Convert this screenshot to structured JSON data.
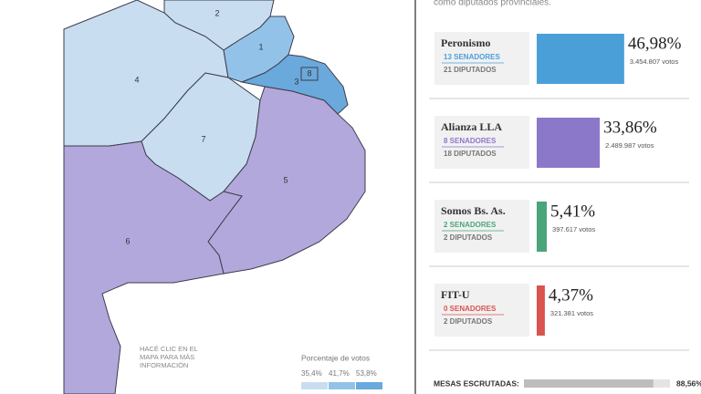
{
  "header": {
    "text": "como diputados provinciales."
  },
  "map": {
    "sections": [
      {
        "label": "2",
        "color": "#c9ddf1"
      },
      {
        "label": "4",
        "color": "#c9ddf1"
      },
      {
        "label": "7",
        "color": "#c9ddf1"
      },
      {
        "label": "1",
        "color": "#93c2e8"
      },
      {
        "label": "3",
        "color": "#6aa9db"
      },
      {
        "label": "5",
        "color": "#b3a8db"
      },
      {
        "label": "6",
        "color": "#b3a8db"
      },
      {
        "label": "8",
        "color": "#6aa9db"
      }
    ],
    "note": [
      "HACÉ CLIC EN EL",
      "MAPA PARA MÁS",
      "INFORMACIÓN"
    ],
    "legend": {
      "title": "Porcentaje de votos",
      "ticks": [
        {
          "value": 35.4,
          "label": "35,4%"
        },
        {
          "value": 41.7,
          "label": "41,7%"
        },
        {
          "value": 53.8,
          "label": "53,8%"
        }
      ],
      "colors": [
        "#c9ddf1",
        "#93c2e8",
        "#6aa9db"
      ]
    }
  },
  "results": [
    {
      "name": "Peronismo",
      "senators": "13 SENADORES",
      "deputies": "21 DIPUTADOS",
      "percent": 46.98,
      "percent_label": "46,98%",
      "votes": "3.454.807 votos",
      "color": "#4b9fd9"
    },
    {
      "name": "Alianza LLA",
      "senators": "8 SENADORES",
      "deputies": "18 DIPUTADOS",
      "percent": 33.86,
      "percent_label": "33,86%",
      "votes": "2.489.987 votos",
      "color": "#8c78c8"
    },
    {
      "name": "Somos Bs. As.",
      "senators": "2 SENADORES",
      "deputies": "2 DIPUTADOS",
      "percent": 5.41,
      "percent_label": "5,41%",
      "votes": "397.617 votos",
      "color": "#4aa57a"
    },
    {
      "name": "FIT-U",
      "senators": "0 SENADORES",
      "deputies": "2 DIPUTADOS",
      "percent": 4.37,
      "percent_label": "4,37%",
      "votes": "321.381 votos",
      "color": "#d9534f"
    }
  ],
  "footer": {
    "label": "MESAS ESCRUTADAS:",
    "value": 88.56,
    "value_label": "88,56%"
  }
}
